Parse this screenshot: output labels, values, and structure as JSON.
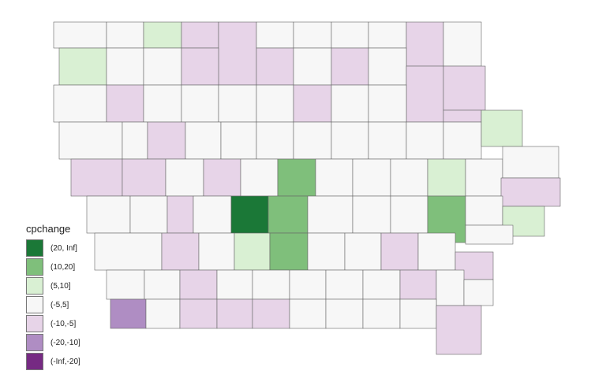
{
  "legend": {
    "title": "cpchange",
    "items": [
      {
        "label": "(20, Inf]",
        "color": "#1b7837"
      },
      {
        "label": "(10,20]",
        "color": "#7fbf7b"
      },
      {
        "label": "(5,10]",
        "color": "#d9f0d3"
      },
      {
        "label": "(-5,5]",
        "color": "#f7f7f7"
      },
      {
        "label": "(-10,-5]",
        "color": "#e7d4e8"
      },
      {
        "label": "(-20,-10]",
        "color": "#af8dc3"
      },
      {
        "label": "(-Inf,-20]",
        "color": "#762a83"
      }
    ]
  },
  "map": {
    "border_color": "#666666",
    "county_classes": [
      3,
      3,
      2,
      4,
      4,
      3,
      3,
      3,
      3,
      4,
      3,
      2,
      3,
      3,
      4,
      4,
      4,
      3,
      4,
      3,
      4,
      4,
      3,
      4,
      3,
      3,
      3,
      3,
      4,
      3,
      3,
      4,
      4,
      3,
      3,
      4,
      3,
      3,
      3,
      3,
      3,
      3,
      3,
      3,
      2,
      4,
      4,
      3,
      4,
      3,
      1,
      3,
      3,
      3,
      2,
      3,
      3,
      4,
      3,
      3,
      4,
      3,
      0,
      1,
      3,
      3,
      3,
      1,
      3,
      2,
      3,
      3,
      4,
      3,
      2,
      1,
      3,
      3,
      4,
      3,
      4,
      3,
      3,
      4,
      3,
      3,
      3,
      3,
      3,
      4,
      3,
      3,
      5,
      3,
      4,
      4,
      4,
      3,
      3,
      3,
      3,
      4
    ]
  }
}
